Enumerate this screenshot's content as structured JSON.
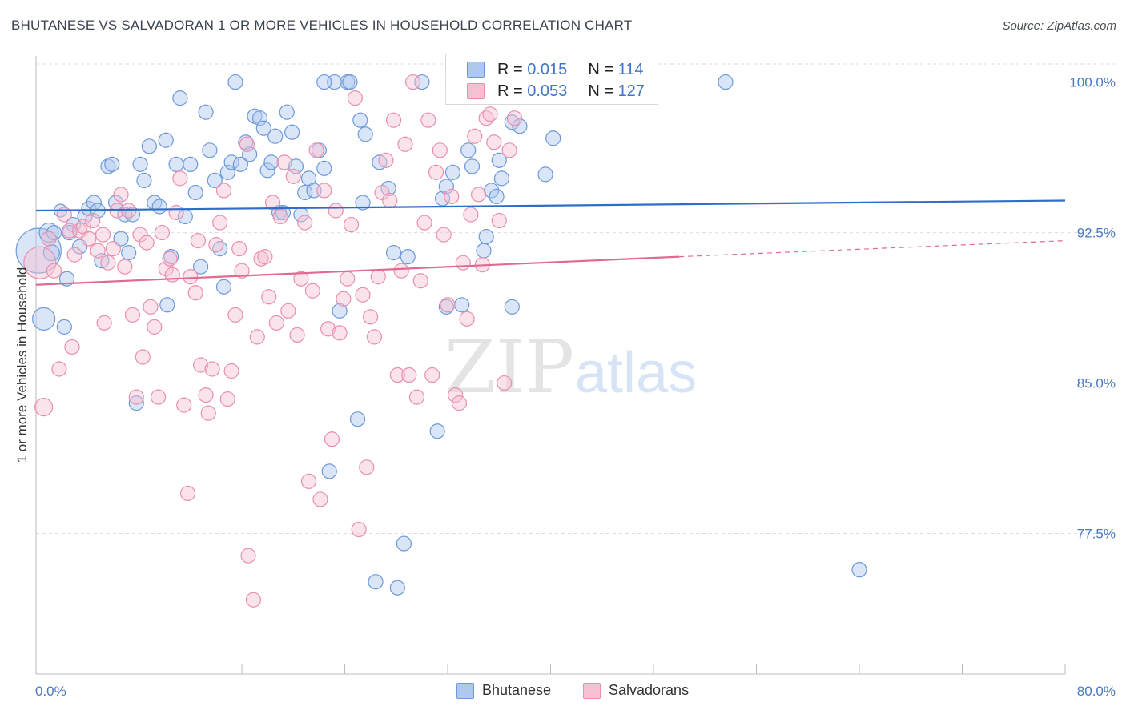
{
  "header": {
    "title": "BHUTANESE VS SALVADORAN 1 OR MORE VEHICLES IN HOUSEHOLD CORRELATION CHART",
    "source": "Source: ZipAtlas.com"
  },
  "watermark": {
    "zip": "ZIP",
    "atlas": "atlas"
  },
  "legend": {
    "rows": [
      {
        "r_label": "R =",
        "r_value": "0.015",
        "n_label": "N =",
        "n_value": "114"
      },
      {
        "r_label": "R =",
        "r_value": "0.053",
        "n_label": "N =",
        "n_value": "127"
      }
    ]
  },
  "bottom_legend": {
    "series_a": "Bhutanese",
    "series_b": "Salvadorans"
  },
  "colors": {
    "bhutanese_fill": "#aec8ef",
    "bhutanese_stroke": "#6d99d8",
    "bhutanese_line": "#2f6dc8",
    "salvadoran_fill": "#f6c0d2",
    "salvadoran_stroke": "#e98fae",
    "salvadoran_line": "#e06a96",
    "tick_text": "#4a78c4",
    "grid": "#dddddd"
  },
  "chart_data": {
    "type": "scatter",
    "xlabel": "",
    "ylabel": "1 or more Vehicles in Household",
    "xlim": [
      0,
      80
    ],
    "ylim": [
      70.5,
      101.3
    ],
    "x_tick_labels": [
      "0.0%",
      "80.0%"
    ],
    "y_ticks": [
      77.5,
      85.0,
      92.5,
      100.0
    ],
    "y_tick_labels": [
      "77.5%",
      "85.0%",
      "92.5%",
      "100.0%"
    ],
    "grid": "horizontal dashed",
    "series": [
      {
        "name": "Bhutanese",
        "R": 0.015,
        "N": 114,
        "trend": {
          "x": [
            0,
            80
          ],
          "y": [
            93.6,
            94.1
          ],
          "dashed_from": null
        },
        "points": [
          [
            0.2,
            91.6,
            28
          ],
          [
            0.6,
            88.2,
            14
          ],
          [
            1.0,
            92.5,
            12
          ],
          [
            1.2,
            91.5,
            10
          ],
          [
            1.4,
            92.5,
            9
          ],
          [
            1.9,
            93.6,
            8
          ],
          [
            2.2,
            87.8,
            9
          ],
          [
            2.4,
            90.2,
            9
          ],
          [
            2.9,
            92.9,
            9
          ],
          [
            3.4,
            91.8,
            9
          ],
          [
            3.8,
            93.3,
            9
          ],
          [
            4.1,
            93.7,
            9
          ],
          [
            4.5,
            94.0,
            9
          ],
          [
            4.8,
            93.6,
            9
          ],
          [
            5.1,
            91.1,
            9
          ],
          [
            5.6,
            95.8,
            9
          ],
          [
            5.9,
            95.9,
            9
          ],
          [
            6.2,
            94.0,
            9
          ],
          [
            6.6,
            92.2,
            9
          ],
          [
            6.9,
            93.4,
            9
          ],
          [
            7.2,
            91.5,
            9
          ],
          [
            7.5,
            93.4,
            9
          ],
          [
            7.8,
            84.0,
            9
          ],
          [
            8.1,
            95.9,
            9
          ],
          [
            8.4,
            95.1,
            9
          ],
          [
            8.8,
            96.8,
            9
          ],
          [
            9.2,
            94.0,
            9
          ],
          [
            9.6,
            93.8,
            9
          ],
          [
            10.1,
            97.1,
            9
          ],
          [
            10.5,
            91.3,
            9
          ],
          [
            10.9,
            95.9,
            9
          ],
          [
            11.2,
            99.2,
            9
          ],
          [
            11.6,
            93.3,
            9
          ],
          [
            12.0,
            95.9,
            9
          ],
          [
            12.4,
            94.5,
            9
          ],
          [
            12.8,
            90.8,
            9
          ],
          [
            13.2,
            98.5,
            9
          ],
          [
            13.5,
            96.6,
            9
          ],
          [
            13.9,
            95.1,
            9
          ],
          [
            14.3,
            91.7,
            9
          ],
          [
            14.6,
            89.8,
            9
          ],
          [
            14.9,
            95.5,
            9
          ],
          [
            15.2,
            96.0,
            9
          ],
          [
            15.5,
            100.0,
            9
          ],
          [
            15.9,
            95.9,
            9
          ],
          [
            16.3,
            97.0,
            9
          ],
          [
            16.6,
            96.4,
            9
          ],
          [
            17.0,
            98.3,
            9
          ],
          [
            17.4,
            98.2,
            9
          ],
          [
            17.7,
            97.7,
            9
          ],
          [
            18.0,
            95.6,
            9
          ],
          [
            18.3,
            96.0,
            9
          ],
          [
            18.6,
            97.3,
            9
          ],
          [
            18.9,
            93.5,
            9
          ],
          [
            19.2,
            93.5,
            9
          ],
          [
            19.5,
            98.5,
            9
          ],
          [
            19.9,
            97.5,
            9
          ],
          [
            20.2,
            95.8,
            9
          ],
          [
            20.6,
            93.4,
            9
          ],
          [
            20.9,
            94.5,
            9
          ],
          [
            21.2,
            95.2,
            9
          ],
          [
            21.6,
            94.6,
            9
          ],
          [
            22.0,
            96.6,
            9
          ],
          [
            22.4,
            95.7,
            9
          ],
          [
            22.8,
            80.6,
            9
          ],
          [
            23.2,
            100.0,
            9
          ],
          [
            23.6,
            88.6,
            9
          ],
          [
            24.2,
            100.0,
            9
          ],
          [
            24.4,
            100.0,
            9
          ],
          [
            25.0,
            83.2,
            9
          ],
          [
            25.2,
            98.1,
            9
          ],
          [
            25.4,
            94.0,
            9
          ],
          [
            25.6,
            97.4,
            9
          ],
          [
            26.4,
            75.1,
            9
          ],
          [
            26.7,
            96.0,
            9
          ],
          [
            27.4,
            94.7,
            9
          ],
          [
            27.8,
            91.5,
            9
          ],
          [
            28.1,
            74.8,
            9
          ],
          [
            28.9,
            91.3,
            9
          ],
          [
            28.6,
            77.0,
            9
          ],
          [
            31.2,
            82.6,
            9
          ],
          [
            31.6,
            94.2,
            9
          ],
          [
            31.9,
            94.8,
            9
          ],
          [
            32.4,
            95.5,
            9
          ],
          [
            33.1,
            88.9,
            9
          ],
          [
            33.6,
            96.6,
            9
          ],
          [
            33.9,
            95.8,
            9
          ],
          [
            34.8,
            91.6,
            9
          ],
          [
            35.0,
            92.3,
            9
          ],
          [
            35.4,
            94.6,
            9
          ],
          [
            35.8,
            94.3,
            9
          ],
          [
            36.0,
            96.1,
            9
          ],
          [
            36.2,
            95.2,
            9
          ],
          [
            37.0,
            98.0,
            9
          ],
          [
            37.6,
            97.8,
            9
          ],
          [
            37.0,
            88.8,
            9
          ],
          [
            39.0,
            100.0,
            9
          ],
          [
            39.6,
            95.4,
            9
          ],
          [
            40.6,
            100.0,
            9
          ],
          [
            40.2,
            97.2,
            9
          ],
          [
            41.0,
            100.0,
            9
          ],
          [
            42.6,
            100.0,
            9
          ],
          [
            53.6,
            100.0,
            9
          ],
          [
            64.0,
            75.7,
            9
          ],
          [
            30.0,
            100.0,
            9
          ],
          [
            22.4,
            100.0,
            9
          ],
          [
            10.2,
            88.9,
            9
          ],
          [
            31.9,
            88.8,
            9
          ],
          [
            2.6,
            92.5,
            9
          ]
        ]
      },
      {
        "name": "Salvadorans",
        "R": 0.053,
        "N": 127,
        "trend": {
          "x": [
            0,
            50,
            80
          ],
          "y": [
            89.9,
            91.3,
            92.1
          ],
          "dashed_from": 50
        },
        "points": [
          [
            0.3,
            91.0,
            20
          ],
          [
            0.6,
            83.8,
            11
          ],
          [
            1.0,
            92.2,
            9
          ],
          [
            1.4,
            90.6,
            9
          ],
          [
            1.8,
            85.7,
            9
          ],
          [
            2.2,
            93.4,
            9
          ],
          [
            2.6,
            92.6,
            9
          ],
          [
            2.8,
            86.8,
            9
          ],
          [
            3.0,
            91.4,
            9
          ],
          [
            3.4,
            92.6,
            9
          ],
          [
            3.7,
            92.8,
            9
          ],
          [
            4.1,
            92.2,
            9
          ],
          [
            4.4,
            93.1,
            9
          ],
          [
            4.8,
            91.6,
            9
          ],
          [
            5.2,
            92.4,
            9
          ],
          [
            5.3,
            88.0,
            9
          ],
          [
            5.6,
            91.0,
            9
          ],
          [
            6.0,
            91.7,
            9
          ],
          [
            6.3,
            93.6,
            9
          ],
          [
            6.6,
            94.4,
            9
          ],
          [
            6.9,
            90.8,
            9
          ],
          [
            7.2,
            93.6,
            9
          ],
          [
            7.5,
            88.4,
            9
          ],
          [
            7.8,
            84.3,
            9
          ],
          [
            8.1,
            92.4,
            9
          ],
          [
            8.3,
            86.3,
            9
          ],
          [
            8.6,
            92.0,
            9
          ],
          [
            8.9,
            88.8,
            9
          ],
          [
            9.2,
            87.8,
            9
          ],
          [
            9.5,
            84.3,
            9
          ],
          [
            9.8,
            92.5,
            9
          ],
          [
            10.1,
            90.7,
            9
          ],
          [
            10.4,
            91.2,
            9
          ],
          [
            10.6,
            90.4,
            9
          ],
          [
            10.9,
            93.5,
            9
          ],
          [
            11.2,
            95.2,
            9
          ],
          [
            11.5,
            83.9,
            9
          ],
          [
            11.8,
            79.5,
            9
          ],
          [
            12.0,
            90.3,
            9
          ],
          [
            12.4,
            89.5,
            9
          ],
          [
            12.6,
            92.1,
            9
          ],
          [
            12.8,
            85.9,
            9
          ],
          [
            13.2,
            84.4,
            9
          ],
          [
            13.4,
            83.5,
            9
          ],
          [
            13.7,
            85.7,
            9
          ],
          [
            14.0,
            91.9,
            9
          ],
          [
            14.3,
            93.0,
            9
          ],
          [
            14.6,
            94.6,
            9
          ],
          [
            14.9,
            84.2,
            9
          ],
          [
            15.2,
            85.6,
            9
          ],
          [
            15.5,
            88.4,
            9
          ],
          [
            15.8,
            91.7,
            9
          ],
          [
            16.0,
            90.6,
            9
          ],
          [
            16.4,
            96.9,
            9
          ],
          [
            16.5,
            76.4,
            9
          ],
          [
            16.9,
            74.2,
            9
          ],
          [
            17.2,
            87.3,
            9
          ],
          [
            17.5,
            91.2,
            9
          ],
          [
            17.8,
            91.3,
            9
          ],
          [
            18.1,
            89.3,
            9
          ],
          [
            18.4,
            94.0,
            9
          ],
          [
            18.7,
            88.0,
            9
          ],
          [
            19.0,
            93.3,
            9
          ],
          [
            19.3,
            96.0,
            9
          ],
          [
            19.6,
            88.6,
            9
          ],
          [
            20.0,
            95.3,
            9
          ],
          [
            20.3,
            87.4,
            9
          ],
          [
            20.6,
            90.2,
            9
          ],
          [
            20.9,
            93.0,
            9
          ],
          [
            21.2,
            80.1,
            9
          ],
          [
            21.5,
            89.6,
            9
          ],
          [
            21.8,
            96.6,
            9
          ],
          [
            22.1,
            79.2,
            9
          ],
          [
            22.4,
            94.6,
            9
          ],
          [
            22.7,
            87.7,
            9
          ],
          [
            23.0,
            82.2,
            9
          ],
          [
            23.3,
            93.6,
            9
          ],
          [
            23.6,
            87.5,
            9
          ],
          [
            23.9,
            89.2,
            9
          ],
          [
            24.2,
            90.2,
            9
          ],
          [
            24.5,
            92.9,
            9
          ],
          [
            24.8,
            99.2,
            9
          ],
          [
            25.1,
            77.7,
            9
          ],
          [
            25.4,
            89.4,
            9
          ],
          [
            25.7,
            80.8,
            9
          ],
          [
            26.0,
            88.3,
            9
          ],
          [
            26.3,
            87.3,
            9
          ],
          [
            26.6,
            90.3,
            9
          ],
          [
            26.9,
            94.5,
            9
          ],
          [
            27.2,
            96.1,
            9
          ],
          [
            27.5,
            94.1,
            9
          ],
          [
            27.8,
            98.1,
            9
          ],
          [
            28.1,
            85.4,
            9
          ],
          [
            28.4,
            90.6,
            9
          ],
          [
            28.7,
            96.9,
            9
          ],
          [
            29.0,
            85.4,
            9
          ],
          [
            29.3,
            100.0,
            9
          ],
          [
            29.6,
            84.3,
            9
          ],
          [
            29.9,
            90.1,
            9
          ],
          [
            30.2,
            93.0,
            9
          ],
          [
            30.5,
            98.1,
            9
          ],
          [
            30.8,
            85.4,
            9
          ],
          [
            31.1,
            95.5,
            9
          ],
          [
            31.4,
            96.6,
            9
          ],
          [
            31.7,
            92.4,
            9
          ],
          [
            32.0,
            88.9,
            9
          ],
          [
            32.3,
            94.3,
            9
          ],
          [
            32.6,
            84.4,
            9
          ],
          [
            32.9,
            84.0,
            9
          ],
          [
            33.2,
            91.0,
            9
          ],
          [
            33.5,
            88.2,
            9
          ],
          [
            33.8,
            93.4,
            9
          ],
          [
            34.1,
            97.3,
            9
          ],
          [
            34.4,
            94.4,
            9
          ],
          [
            34.7,
            90.9,
            9
          ],
          [
            35.0,
            98.2,
            9
          ],
          [
            35.3,
            98.4,
            9
          ],
          [
            35.6,
            97.0,
            9
          ],
          [
            36.0,
            93.1,
            9
          ],
          [
            36.4,
            85.0,
            9
          ],
          [
            36.8,
            96.6,
            9
          ],
          [
            37.2,
            98.2,
            9
          ]
        ]
      }
    ]
  }
}
